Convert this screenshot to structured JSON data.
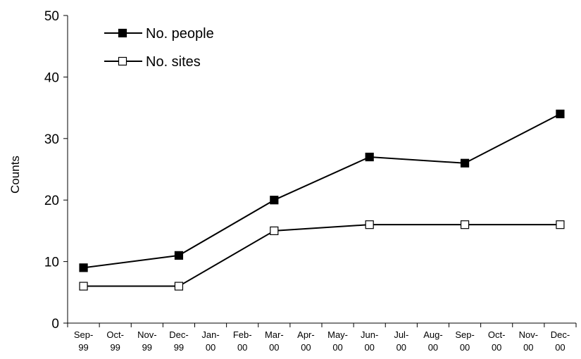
{
  "chart_data": {
    "type": "line",
    "xlabel": "",
    "ylabel": "Counts",
    "ylim": [
      0,
      50
    ],
    "yticks": [
      0,
      10,
      20,
      30,
      40,
      50
    ],
    "grid": false,
    "legend_position": "top-left",
    "categories": [
      [
        "Sep-",
        "99"
      ],
      [
        "Oct-",
        "99"
      ],
      [
        "Nov-",
        "99"
      ],
      [
        "Dec-",
        "99"
      ],
      [
        "Jan-",
        "00"
      ],
      [
        "Feb-",
        "00"
      ],
      [
        "Mar-",
        "00"
      ],
      [
        "Apr-",
        "00"
      ],
      [
        "May-",
        "00"
      ],
      [
        "Jun-",
        "00"
      ],
      [
        "Jul-",
        "00"
      ],
      [
        "Aug-",
        "00"
      ],
      [
        "Sep-",
        "00"
      ],
      [
        "Oct-",
        "00"
      ],
      [
        "Nov-",
        "00"
      ],
      [
        "Dec-",
        "00"
      ]
    ],
    "series": [
      {
        "name": "No. people",
        "marker": "filled-square",
        "color": "#000000",
        "points": [
          {
            "x": "Sep-99",
            "y": 9
          },
          {
            "x": "Dec-99",
            "y": 11
          },
          {
            "x": "Mar-00",
            "y": 20
          },
          {
            "x": "Jun-00",
            "y": 27
          },
          {
            "x": "Sep-00",
            "y": 26
          },
          {
            "x": "Dec-00",
            "y": 34
          }
        ]
      },
      {
        "name": "No. sites",
        "marker": "open-square",
        "color": "#000000",
        "points": [
          {
            "x": "Sep-99",
            "y": 6
          },
          {
            "x": "Dec-99",
            "y": 6
          },
          {
            "x": "Mar-00",
            "y": 15
          },
          {
            "x": "Jun-00",
            "y": 16
          },
          {
            "x": "Sep-00",
            "y": 16
          },
          {
            "x": "Dec-00",
            "y": 16
          }
        ]
      }
    ]
  }
}
